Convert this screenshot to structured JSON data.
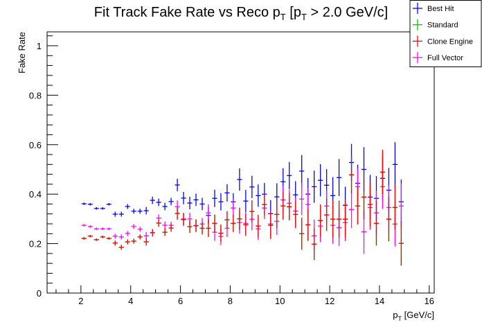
{
  "chart_data": {
    "type": "scatter",
    "title_main": "Fit Track Fake Rate vs Reco p",
    "title_sub": "T",
    "title_mid": " [p",
    "title_sub2": "T",
    "title_end": " > 2.0 GeV/c]",
    "xlabel_main": "p",
    "xlabel_sub": "T",
    "xlabel_end": " [GeV/c]",
    "ylabel": "Fake Rate",
    "xlim": [
      0.64,
      16.2
    ],
    "ylim": [
      0,
      1.056
    ],
    "xticks": [
      "2",
      "4",
      "6",
      "8",
      "10",
      "12",
      "14",
      "16"
    ],
    "yticks": [
      "0",
      "0.2",
      "0.4",
      "0.6",
      "0.8",
      "1"
    ],
    "x_start": 2.125,
    "x_step": 0.25,
    "x_halfwidth": 0.1,
    "yerr": [
      0.005,
      0.005,
      0.005,
      0.005,
      0.005,
      0.01,
      0.01,
      0.01,
      0.01,
      0.01,
      0.015,
      0.015,
      0.015,
      0.015,
      0.015,
      0.025,
      0.025,
      0.025,
      0.025,
      0.025,
      0.035,
      0.035,
      0.035,
      0.035,
      0.035,
      0.045,
      0.045,
      0.045,
      0.045,
      0.045,
      0.055,
      0.055,
      0.055,
      0.055,
      0.055,
      0.065,
      0.065,
      0.065,
      0.065,
      0.065,
      0.075,
      0.075,
      0.075,
      0.075,
      0.075,
      0.09,
      0.09,
      0.09,
      0.09,
      0.09,
      0.09,
      0.09
    ],
    "legend_position": "top-right",
    "series": [
      {
        "name": "Standard",
        "color": "#00cc00",
        "values": [
          0.221,
          0.23,
          0.216,
          0.227,
          0.221,
          0.202,
          0.185,
          0.207,
          0.21,
          0.227,
          0.207,
          0.244,
          0.283,
          0.246,
          0.263,
          0.322,
          0.297,
          0.268,
          0.273,
          0.262,
          0.262,
          0.282,
          0.242,
          0.296,
          0.282,
          0.3,
          0.276,
          0.33,
          0.271,
          0.358,
          0.274,
          0.318,
          0.352,
          0.349,
          0.318,
          0.24,
          0.276,
          0.198,
          0.293,
          0.316,
          0.299,
          0.299,
          0.299,
          0.478,
          0.352,
          0.388,
          0.358,
          0.282,
          0.489,
          0.299,
          0.346,
          0.201
        ]
      },
      {
        "name": "Best Hit",
        "color": "#0000ff",
        "values": [
          0.361,
          0.359,
          0.342,
          0.342,
          0.359,
          0.319,
          0.319,
          0.35,
          0.331,
          0.331,
          0.333,
          0.375,
          0.367,
          0.35,
          0.37,
          0.437,
          0.384,
          0.364,
          0.377,
          0.36,
          0.314,
          0.383,
          0.369,
          0.405,
          0.369,
          0.459,
          0.372,
          0.429,
          0.394,
          0.4,
          0.321,
          0.389,
          0.45,
          0.475,
          0.397,
          0.493,
          0.4,
          0.43,
          0.456,
          0.436,
          0.394,
          0.467,
          0.355,
          0.528,
          0.444,
          0.5,
          0.388,
          0.383,
          0.464,
          0.416,
          0.52,
          0.369
        ]
      },
      {
        "name": "Full Vector",
        "color": "#ff00ff",
        "values": [
          0.274,
          0.269,
          0.26,
          0.26,
          0.26,
          0.23,
          0.227,
          0.241,
          0.269,
          0.258,
          0.232,
          0.244,
          0.303,
          0.274,
          0.274,
          0.35,
          0.3,
          0.3,
          0.272,
          0.279,
          0.324,
          0.246,
          0.229,
          0.262,
          0.344,
          0.285,
          0.282,
          0.299,
          0.26,
          0.344,
          0.279,
          0.29,
          0.377,
          0.363,
          0.332,
          0.38,
          0.358,
          0.232,
          0.271,
          0.352,
          0.274,
          0.265,
          0.285,
          0.338,
          0.43,
          0.248,
          0.346,
          0.324,
          0.43,
          0.346,
          0.279,
          0.352
        ]
      },
      {
        "name": "Clone Engine",
        "color": "#ff0000",
        "values": [
          0.221,
          0.23,
          0.216,
          0.227,
          0.221,
          0.202,
          0.185,
          0.207,
          0.21,
          0.227,
          0.207,
          0.244,
          0.283,
          0.246,
          0.263,
          0.322,
          0.297,
          0.268,
          0.273,
          0.262,
          0.262,
          0.282,
          0.242,
          0.296,
          0.282,
          0.3,
          0.276,
          0.33,
          0.271,
          0.358,
          0.274,
          0.318,
          0.352,
          0.349,
          0.318,
          0.24,
          0.276,
          0.198,
          0.293,
          0.316,
          0.299,
          0.299,
          0.299,
          0.478,
          0.352,
          0.388,
          0.358,
          0.282,
          0.489,
          0.299,
          0.346,
          0.201
        ]
      }
    ],
    "legend": [
      {
        "label": "Best Hit",
        "color": "#0000ff"
      },
      {
        "label": "Standard",
        "color": "#00cc00"
      },
      {
        "label": "Clone Engine",
        "color": "#ff0000"
      },
      {
        "label": "Full Vector",
        "color": "#ff00ff"
      }
    ]
  }
}
